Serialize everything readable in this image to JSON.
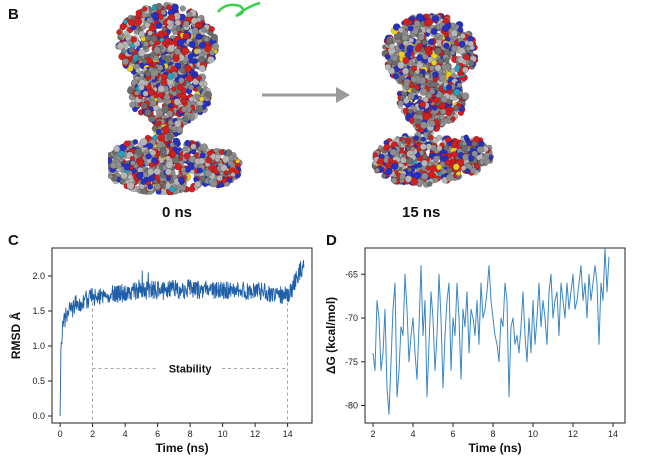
{
  "panels": {
    "B": {
      "letter": "B",
      "left_caption": "0 ns",
      "right_caption": "15 ns",
      "arrow_color": "#9a9a9a",
      "atom_colors": [
        "#8e8e8e",
        "#b5b5b5",
        "#6e6e6e",
        "#d02020",
        "#2830c0",
        "#e8d020",
        "#28a0c0"
      ],
      "ribbon_color": "#3ad14a"
    },
    "C": {
      "letter": "C"
    },
    "D": {
      "letter": "D"
    }
  },
  "chart_data": [
    {
      "id": "C",
      "type": "line",
      "xlabel": "Time (ns)",
      "ylabel": "RMSD Å",
      "xlim": [
        -0.5,
        15.5
      ],
      "ylim": [
        -0.1,
        2.4
      ],
      "xticks": [
        0,
        2,
        4,
        6,
        8,
        10,
        12,
        14
      ],
      "yticks": [
        0.0,
        0.5,
        1.0,
        1.5,
        2.0
      ],
      "ytick_labels": [
        "0.0",
        "0.5",
        "1.0",
        "1.5",
        "2.0"
      ],
      "color": "#1f5fa8",
      "grid": false,
      "annotation": {
        "text": "Stability",
        "x_start": 2,
        "x_end": 14,
        "y": 0.68
      },
      "series": [
        {
          "x": [
            0,
            0.05,
            0.1,
            0.2,
            0.3,
            0.5,
            0.8,
            1.0,
            1.3,
            1.6,
            2.0,
            2.5,
            3.0,
            3.5,
            4.0,
            4.5,
            5.0,
            5.5,
            6.0,
            6.5,
            7.0,
            7.5,
            8.0,
            8.5,
            9.0,
            9.5,
            10.0,
            10.5,
            11.0,
            11.5,
            12.0,
            12.5,
            13.0,
            13.5,
            14.0,
            14.2,
            14.5,
            14.8,
            15.0
          ],
          "y": [
            0.0,
            0.95,
            1.15,
            1.3,
            1.4,
            1.48,
            1.55,
            1.6,
            1.63,
            1.66,
            1.7,
            1.72,
            1.74,
            1.75,
            1.76,
            1.78,
            1.79,
            1.8,
            1.8,
            1.81,
            1.81,
            1.8,
            1.82,
            1.8,
            1.81,
            1.8,
            1.79,
            1.8,
            1.8,
            1.79,
            1.78,
            1.77,
            1.76,
            1.74,
            1.72,
            1.78,
            1.95,
            2.08,
            2.12
          ]
        }
      ]
    },
    {
      "id": "D",
      "type": "line",
      "xlabel": "Time (ns)",
      "ylabel": "ΔG (kcal/mol)",
      "xlim": [
        1.6,
        14.6
      ],
      "ylim": [
        -82,
        -62
      ],
      "xticks": [
        2,
        4,
        6,
        8,
        10,
        12,
        14
      ],
      "yticks": [
        -80,
        -75,
        -70,
        -65
      ],
      "color": "#3a86c4",
      "grid": false,
      "series": [
        {
          "x": [
            2.0,
            2.1,
            2.2,
            2.3,
            2.4,
            2.5,
            2.6,
            2.7,
            2.8,
            2.9,
            3.0,
            3.1,
            3.2,
            3.3,
            3.4,
            3.5,
            3.6,
            3.7,
            3.8,
            3.9,
            4.0,
            4.1,
            4.2,
            4.3,
            4.4,
            4.5,
            4.6,
            4.7,
            4.8,
            4.9,
            5.0,
            5.1,
            5.2,
            5.3,
            5.4,
            5.5,
            5.6,
            5.7,
            5.8,
            5.9,
            6.0,
            6.1,
            6.2,
            6.3,
            6.4,
            6.5,
            6.6,
            6.7,
            6.8,
            6.9,
            7.0,
            7.1,
            7.2,
            7.3,
            7.4,
            7.5,
            7.6,
            7.7,
            7.8,
            7.9,
            8.0,
            8.1,
            8.2,
            8.3,
            8.4,
            8.5,
            8.6,
            8.7,
            8.8,
            8.9,
            9.0,
            9.1,
            9.2,
            9.3,
            9.4,
            9.5,
            9.6,
            9.7,
            9.8,
            9.9,
            10.0,
            10.1,
            10.2,
            10.3,
            10.4,
            10.5,
            10.6,
            10.7,
            10.8,
            10.9,
            11.0,
            11.1,
            11.2,
            11.3,
            11.4,
            11.5,
            11.6,
            11.7,
            11.8,
            11.9,
            12.0,
            12.1,
            12.2,
            12.3,
            12.4,
            12.5,
            12.6,
            12.7,
            12.8,
            12.9,
            13.0,
            13.1,
            13.2,
            13.3,
            13.4,
            13.5,
            13.6,
            13.7,
            13.8
          ],
          "y": [
            -74,
            -76,
            -68,
            -70,
            -76,
            -74,
            -69,
            -78,
            -81,
            -75,
            -69,
            -66,
            -79,
            -76,
            -71,
            -72,
            -65,
            -69,
            -75,
            -72,
            -70,
            -74,
            -77,
            -71,
            -64,
            -72,
            -68,
            -79,
            -73,
            -67,
            -70,
            -76,
            -72,
            -65,
            -70,
            -78,
            -72,
            -68,
            -66,
            -76,
            -70,
            -72,
            -66,
            -70,
            -77,
            -69,
            -71,
            -67,
            -74,
            -69,
            -70,
            -72,
            -68,
            -73,
            -66,
            -70,
            -69,
            -67,
            -64,
            -68,
            -70,
            -72,
            -73,
            -75,
            -70,
            -71,
            -66,
            -68,
            -79,
            -71,
            -70,
            -73,
            -72,
            -74,
            -71,
            -67,
            -72,
            -75,
            -70,
            -74,
            -68,
            -73,
            -70,
            -66,
            -71,
            -68,
            -70,
            -73,
            -67,
            -65,
            -70,
            -68,
            -67,
            -72,
            -66,
            -68,
            -70,
            -66,
            -69,
            -67,
            -65,
            -69,
            -68,
            -66,
            -64,
            -68,
            -66,
            -70,
            -65,
            -68,
            -66,
            -64,
            -66,
            -73,
            -66,
            -68,
            -62,
            -67,
            -63
          ]
        }
      ]
    }
  ]
}
